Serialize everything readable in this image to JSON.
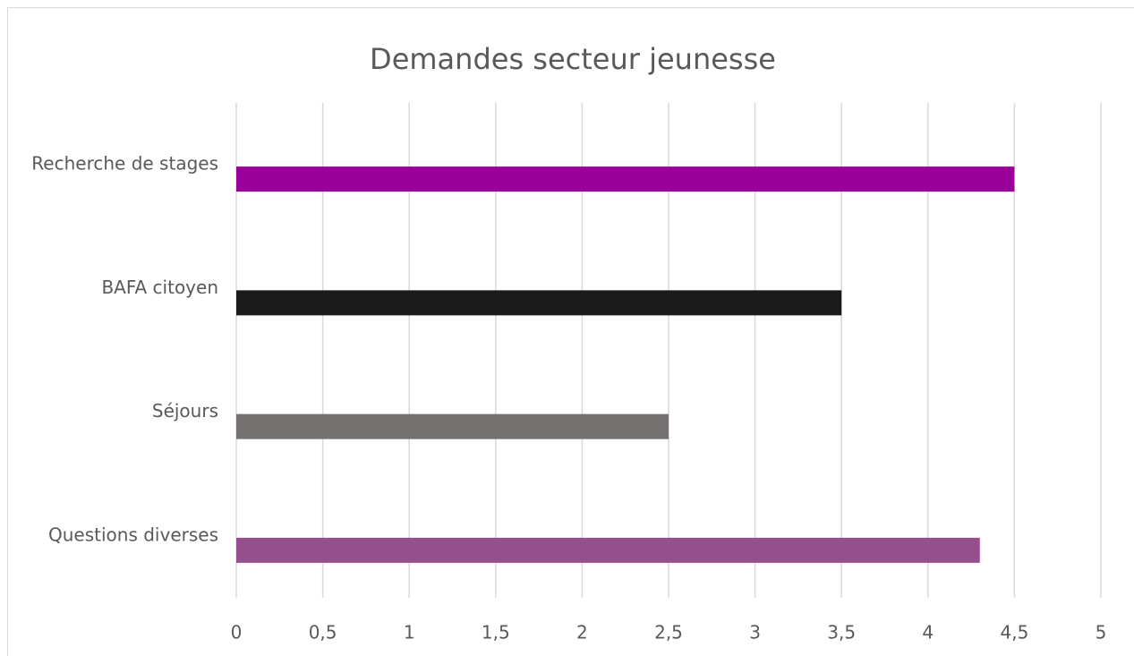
{
  "chart_data": {
    "type": "barh",
    "title": "Demandes secteur jeunesse",
    "categories": [
      "Recherche de stages",
      "BAFA citoyen",
      "Séjours",
      "Questions diverses"
    ],
    "values": [
      4.5,
      3.5,
      2.5,
      4.3
    ],
    "colors": [
      "#990099",
      "#1a1a1a",
      "#767171",
      "#954f8c"
    ],
    "xlim": [
      0,
      5
    ],
    "xticks": [
      0,
      {
        "value": 0.5,
        "label": "0,5"
      },
      1,
      {
        "value": 1.5,
        "label": "1,5"
      },
      2,
      {
        "value": 2.5,
        "label": "2,5"
      },
      3,
      {
        "value": 3.5,
        "label": "3,5"
      },
      4,
      {
        "value": 4.5,
        "label": "4,5"
      },
      5
    ],
    "grid": true
  }
}
